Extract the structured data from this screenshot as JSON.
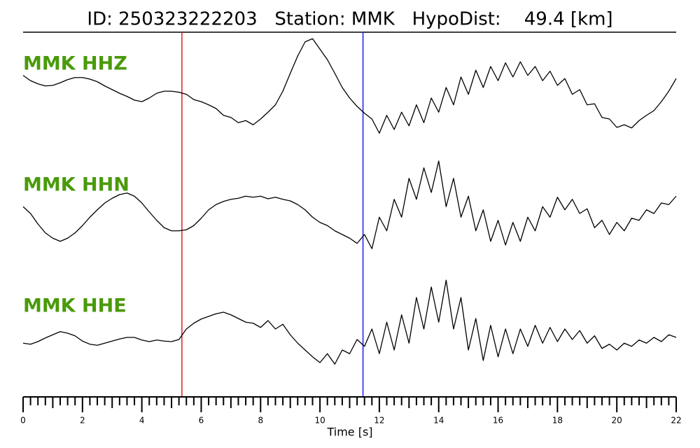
{
  "chart_data": {
    "type": "line",
    "title": "ID: 250323222203   Station: MMK   HypoDist:    49.4 [km]",
    "xlabel": "Time [s]",
    "xlim": [
      0,
      22
    ],
    "xticks": [
      0,
      2,
      4,
      6,
      8,
      10,
      12,
      14,
      16,
      18,
      20,
      22
    ],
    "minor_tick_step": 0.25,
    "ylim": [
      -1,
      1
    ],
    "label_color": "#4a9a0a",
    "markers": [
      {
        "x": 5.35,
        "color": "#e02020"
      },
      {
        "x": 11.45,
        "color": "#1a1aff"
      }
    ],
    "x": [
      0,
      0.25,
      0.5,
      0.75,
      1,
      1.25,
      1.5,
      1.75,
      2,
      2.25,
      2.5,
      2.75,
      3,
      3.25,
      3.5,
      3.75,
      4,
      4.25,
      4.5,
      4.75,
      5,
      5.25,
      5.5,
      5.75,
      6,
      6.25,
      6.5,
      6.75,
      7,
      7.25,
      7.5,
      7.75,
      8,
      8.25,
      8.5,
      8.75,
      9,
      9.25,
      9.5,
      9.75,
      10,
      10.25,
      10.5,
      10.75,
      11,
      11.25,
      11.5,
      11.75,
      12,
      12.25,
      12.5,
      12.75,
      13,
      13.25,
      13.5,
      13.75,
      14,
      14.25,
      14.5,
      14.75,
      15,
      15.25,
      15.5,
      15.75,
      16,
      16.25,
      16.5,
      16.75,
      17,
      17.25,
      17.5,
      17.75,
      18,
      18.25,
      18.5,
      18.75,
      19,
      19.25,
      19.5,
      19.75,
      20,
      20.25,
      20.5,
      20.75,
      21,
      21.25,
      21.5,
      21.75,
      22
    ],
    "series": [
      {
        "name": "MMK HHZ",
        "color": "#000000",
        "values": [
          0.23,
          0.13,
          0.07,
          0.03,
          0.04,
          0.09,
          0.15,
          0.19,
          0.19,
          0.16,
          0.11,
          0.03,
          -0.04,
          -0.11,
          -0.17,
          -0.24,
          -0.27,
          -0.2,
          -0.11,
          -0.07,
          -0.07,
          -0.09,
          -0.13,
          -0.23,
          -0.27,
          -0.33,
          -0.4,
          -0.53,
          -0.57,
          -0.67,
          -0.63,
          -0.71,
          -0.6,
          -0.47,
          -0.33,
          -0.07,
          0.27,
          0.6,
          0.87,
          0.93,
          0.73,
          0.53,
          0.27,
          0,
          -0.2,
          -0.36,
          -0.49,
          -0.6,
          -0.87,
          -0.53,
          -0.8,
          -0.47,
          -0.73,
          -0.33,
          -0.67,
          -0.2,
          -0.47,
          0,
          -0.33,
          0.2,
          -0.13,
          0.33,
          0,
          0.4,
          0.13,
          0.47,
          0.2,
          0.49,
          0.23,
          0.4,
          0.13,
          0.31,
          0.04,
          0.17,
          -0.13,
          -0.04,
          -0.33,
          -0.31,
          -0.57,
          -0.6,
          -0.76,
          -0.71,
          -0.77,
          -0.63,
          -0.53,
          -0.44,
          -0.27,
          -0.07,
          0.17
        ]
      },
      {
        "name": "MMK HHN",
        "color": "#000000",
        "values": [
          -0.07,
          -0.2,
          -0.4,
          -0.57,
          -0.67,
          -0.73,
          -0.67,
          -0.57,
          -0.43,
          -0.27,
          -0.13,
          0,
          0.09,
          0.16,
          0.19,
          0.13,
          0,
          -0.17,
          -0.33,
          -0.47,
          -0.53,
          -0.53,
          -0.51,
          -0.43,
          -0.29,
          -0.13,
          -0.03,
          0.03,
          0.07,
          0.09,
          0.13,
          0.11,
          0.13,
          0.08,
          0.11,
          0.07,
          0.04,
          -0.03,
          -0.13,
          -0.27,
          -0.37,
          -0.43,
          -0.53,
          -0.6,
          -0.67,
          -0.77,
          -0.6,
          -0.87,
          -0.27,
          -0.53,
          0.07,
          -0.27,
          0.47,
          0.07,
          0.67,
          0.2,
          0.8,
          -0.07,
          0.47,
          -0.27,
          0.13,
          -0.53,
          -0.13,
          -0.73,
          -0.33,
          -0.8,
          -0.37,
          -0.73,
          -0.27,
          -0.53,
          -0.07,
          -0.27,
          0.11,
          -0.13,
          0.07,
          -0.2,
          -0.11,
          -0.47,
          -0.33,
          -0.6,
          -0.37,
          -0.53,
          -0.29,
          -0.33,
          -0.13,
          -0.2,
          0,
          -0.03,
          0.13
        ]
      },
      {
        "name": "MMK HHE",
        "color": "#000000",
        "values": [
          -0.27,
          -0.29,
          -0.24,
          -0.17,
          -0.11,
          -0.05,
          -0.08,
          -0.13,
          -0.23,
          -0.29,
          -0.31,
          -0.27,
          -0.23,
          -0.19,
          -0.16,
          -0.16,
          -0.21,
          -0.24,
          -0.21,
          -0.23,
          -0.24,
          -0.2,
          0,
          0.11,
          0.19,
          0.24,
          0.29,
          0.32,
          0.27,
          0.2,
          0.13,
          0.11,
          0.03,
          0.16,
          0,
          0.09,
          -0.11,
          -0.27,
          -0.4,
          -0.53,
          -0.64,
          -0.47,
          -0.67,
          -0.4,
          -0.47,
          -0.2,
          -0.33,
          0,
          -0.47,
          0.13,
          -0.4,
          0.27,
          -0.27,
          0.6,
          0,
          0.8,
          0.13,
          0.93,
          0,
          0.6,
          -0.4,
          0.2,
          -0.6,
          0.07,
          -0.53,
          0,
          -0.47,
          0,
          -0.33,
          0.07,
          -0.27,
          0.03,
          -0.24,
          0,
          -0.2,
          -0.03,
          -0.27,
          -0.13,
          -0.37,
          -0.29,
          -0.4,
          -0.27,
          -0.33,
          -0.21,
          -0.27,
          -0.16,
          -0.24,
          -0.11,
          -0.16
        ]
      }
    ]
  }
}
